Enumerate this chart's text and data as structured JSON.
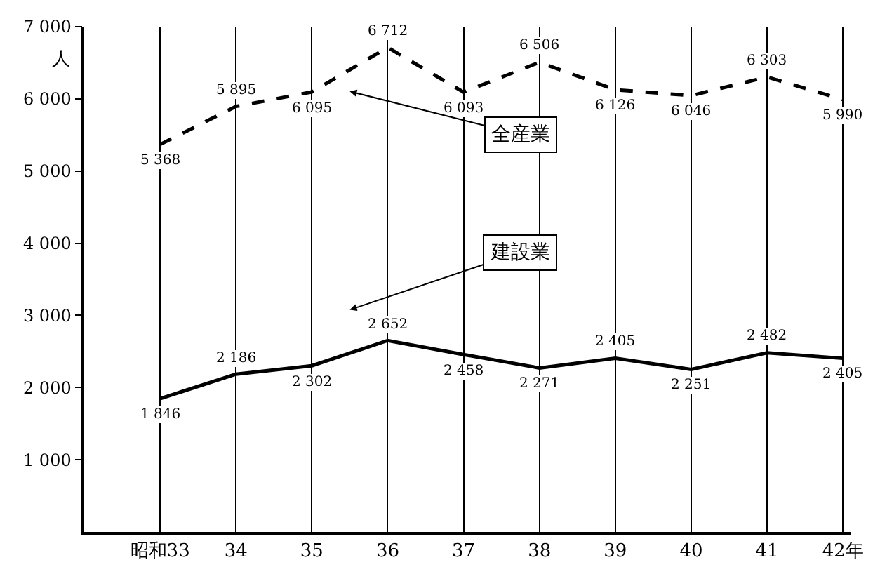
{
  "chart_data": {
    "type": "line",
    "categories": [
      "昭和33",
      "34",
      "35",
      "36",
      "37",
      "38",
      "39",
      "40",
      "41",
      "42年"
    ],
    "ylabel": "人",
    "ylim": [
      0,
      7000
    ],
    "yticks": [
      {
        "value": 1000,
        "label": "1 000"
      },
      {
        "value": 2000,
        "label": "2 000"
      },
      {
        "value": 3000,
        "label": "3 000"
      },
      {
        "value": 4000,
        "label": "4 000"
      },
      {
        "value": 5000,
        "label": "5 000"
      },
      {
        "value": 6000,
        "label": "6 000"
      },
      {
        "value": 7000,
        "label": "7 000"
      }
    ],
    "grid": "x",
    "legend": false,
    "marker": "none",
    "series": [
      {
        "name": "全産業",
        "color": "#000000",
        "line_style": "dashed",
        "values": [
          5368,
          5895,
          6095,
          6712,
          6093,
          6506,
          6126,
          6046,
          6303,
          5990
        ],
        "value_labels": [
          "5 368",
          "5 895",
          "6 095",
          "6 712",
          "6 093",
          "6 506",
          "6 126",
          "6 046",
          "6 303",
          "5 990"
        ]
      },
      {
        "name": "建設業",
        "color": "#000000",
        "line_style": "solid",
        "values": [
          1846,
          2186,
          2302,
          2652,
          2458,
          2271,
          2405,
          2251,
          2482,
          2405
        ],
        "value_labels": [
          "1 846",
          "2 186",
          "2 302",
          "2 652",
          "2 458",
          "2 271",
          "2 405",
          "2 251",
          "2 482",
          "2 405"
        ]
      }
    ]
  }
}
